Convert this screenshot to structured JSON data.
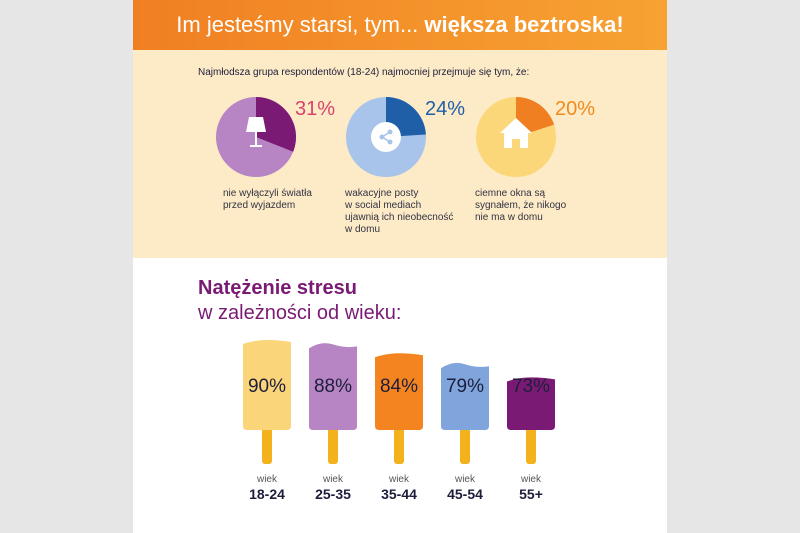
{
  "banner": {
    "title_regular": "Im jesteśmy starsi, tym...",
    "title_bold": "większa beztroska!"
  },
  "stats_section": {
    "intro": "Najmłodsza grupa respondentów (18-24) najmocniej przejmuje się tym, że:",
    "items": [
      {
        "percent": "31%",
        "value": 31,
        "icon": "lamp-icon",
        "desc": [
          "nie wyłączyli światła",
          "przed wyjazdem"
        ],
        "pie_base_color": "#b784c4",
        "pie_slice_color": "#7b1a74",
        "percent_color": "#d9436b"
      },
      {
        "percent": "24%",
        "value": 24,
        "icon": "share-icon",
        "desc": [
          "wakacyjne posty",
          "w social mediach",
          "ujawnią ich nieobecność",
          "w domu"
        ],
        "pie_base_color": "#a9c4ea",
        "pie_slice_color": "#1f5fa8",
        "percent_color": "#1f5fa8"
      },
      {
        "percent": "20%",
        "value": 20,
        "icon": "house-icon",
        "desc": [
          "ciemne okna są",
          "sygnałem, że nikogo",
          "nie ma w domu"
        ],
        "pie_base_color": "#fbd77a",
        "pie_slice_color": "#f07f22",
        "percent_color": "#f08a1c"
      }
    ]
  },
  "stress_section": {
    "title_line1": "Natężenie stresu",
    "title_line2": "w zależności od wieku:",
    "age_word": "wiek",
    "popsicles": [
      {
        "value": 90,
        "label": "90%",
        "age": "18-24",
        "color": "#fbd57a"
      },
      {
        "value": 88,
        "label": "88%",
        "age": "25-35",
        "color": "#b784c4"
      },
      {
        "value": 84,
        "label": "84%",
        "age": "35-44",
        "color": "#f4841f"
      },
      {
        "value": 79,
        "label": "79%",
        "age": "45-54",
        "color": "#7fa5dc"
      },
      {
        "value": 73,
        "label": "73%",
        "age": "55+",
        "color": "#7b1a74"
      }
    ],
    "stick_color": "#f3b21b"
  }
}
